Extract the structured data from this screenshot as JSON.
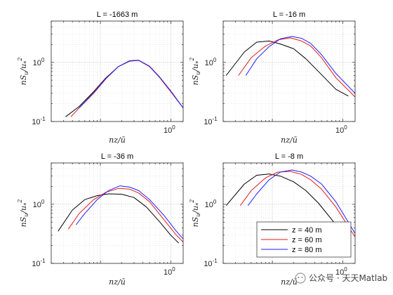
{
  "chart_data": [
    {
      "type": "line",
      "title": "L = -1663 m",
      "xlabel": "nz/ū",
      "ylabel": "nS_u/u_*^2",
      "xscale": "log",
      "yscale": "log",
      "xlim": [
        0.02,
        1.5
      ],
      "ylim": [
        0.1,
        5
      ],
      "xticks": [
        {
          "v": 1,
          "label": "10^0"
        }
      ],
      "yticks": [
        {
          "v": 0.1,
          "label": "10^-1"
        },
        {
          "v": 1,
          "label": "10^0"
        }
      ],
      "grid": true,
      "series": [
        {
          "name": "z = 40 m",
          "color": "#000000",
          "x": [
            0.032,
            0.05,
            0.08,
            0.12,
            0.18,
            0.26,
            0.35,
            0.5,
            0.7,
            1.0,
            1.5
          ],
          "y": [
            0.12,
            0.18,
            0.32,
            0.55,
            0.85,
            1.05,
            1.08,
            0.85,
            0.55,
            0.32,
            0.17
          ]
        },
        {
          "name": "z = 60 m",
          "color": "#e41a1c",
          "x": [
            0.038,
            0.05,
            0.08,
            0.12,
            0.18,
            0.26,
            0.35,
            0.5,
            0.7,
            1.0,
            1.5
          ],
          "y": [
            0.12,
            0.17,
            0.31,
            0.54,
            0.85,
            1.06,
            1.08,
            0.85,
            0.55,
            0.32,
            0.17
          ]
        },
        {
          "name": "z = 80 m",
          "color": "#1f1fff",
          "x": [
            0.05,
            0.08,
            0.12,
            0.18,
            0.26,
            0.35,
            0.5,
            0.7,
            1.0,
            1.5
          ],
          "y": [
            0.17,
            0.3,
            0.53,
            0.85,
            1.07,
            1.09,
            0.86,
            0.56,
            0.33,
            0.17
          ]
        }
      ]
    },
    {
      "type": "line",
      "title": "L = -16 m",
      "xlabel": "nz/ū",
      "ylabel": "nS_u/u_*^2",
      "xscale": "log",
      "yscale": "log",
      "xlim": [
        0.02,
        1.5
      ],
      "ylim": [
        0.1,
        5
      ],
      "xticks": [
        {
          "v": 1,
          "label": "10^0"
        }
      ],
      "yticks": [
        {
          "v": 0.1,
          "label": "10^-1"
        },
        {
          "v": 1,
          "label": "10^0"
        }
      ],
      "grid": true,
      "series": [
        {
          "name": "z = 40 m",
          "color": "#000000",
          "x": [
            0.022,
            0.04,
            0.06,
            0.09,
            0.13,
            0.2,
            0.3,
            0.5,
            0.8,
            1.2
          ],
          "y": [
            0.6,
            1.5,
            2.2,
            2.3,
            2.05,
            1.7,
            1.15,
            0.62,
            0.35,
            0.27
          ]
        },
        {
          "name": "z = 60 m",
          "color": "#e41a1c",
          "x": [
            0.033,
            0.05,
            0.08,
            0.12,
            0.18,
            0.26,
            0.35,
            0.5,
            0.8,
            1.5
          ],
          "y": [
            0.6,
            1.2,
            1.9,
            2.4,
            2.6,
            2.3,
            1.9,
            1.2,
            0.55,
            0.26
          ]
        },
        {
          "name": "z = 80 m",
          "color": "#1f1fff",
          "x": [
            0.042,
            0.06,
            0.09,
            0.13,
            0.19,
            0.26,
            0.35,
            0.5,
            0.8,
            1.5
          ],
          "y": [
            0.6,
            1.15,
            1.85,
            2.5,
            2.75,
            2.55,
            2.1,
            1.35,
            0.65,
            0.3
          ]
        }
      ]
    },
    {
      "type": "line",
      "title": "L = -36 m",
      "xlabel": "nz/ū",
      "ylabel": "nS_u/u_*^2",
      "xscale": "log",
      "yscale": "log",
      "xlim": [
        0.02,
        1.5
      ],
      "ylim": [
        0.1,
        5
      ],
      "xticks": [
        {
          "v": 1,
          "label": "10^0"
        }
      ],
      "yticks": [
        {
          "v": 0.1,
          "label": "10^-1"
        },
        {
          "v": 1,
          "label": "10^0"
        }
      ],
      "grid": true,
      "series": [
        {
          "name": "z = 40 m",
          "color": "#000000",
          "x": [
            0.025,
            0.04,
            0.06,
            0.09,
            0.13,
            0.2,
            0.3,
            0.45,
            0.7,
            1.0,
            1.3
          ],
          "y": [
            0.35,
            0.8,
            1.2,
            1.4,
            1.5,
            1.48,
            1.3,
            0.9,
            0.5,
            0.3,
            0.22
          ]
        },
        {
          "name": "z = 60 m",
          "color": "#e41a1c",
          "x": [
            0.035,
            0.05,
            0.08,
            0.12,
            0.18,
            0.26,
            0.35,
            0.5,
            0.8,
            1.2,
            1.5
          ],
          "y": [
            0.38,
            0.7,
            1.2,
            1.6,
            1.85,
            1.8,
            1.55,
            1.1,
            0.55,
            0.3,
            0.23
          ]
        },
        {
          "name": "z = 80 m",
          "color": "#1f1fff",
          "x": [
            0.045,
            0.06,
            0.09,
            0.13,
            0.19,
            0.26,
            0.35,
            0.5,
            0.8,
            1.2,
            1.5
          ],
          "y": [
            0.45,
            0.7,
            1.2,
            1.7,
            2.05,
            1.95,
            1.7,
            1.2,
            0.65,
            0.35,
            0.26
          ]
        }
      ]
    },
    {
      "type": "line",
      "title": "L = -8 m",
      "xlabel": "nz/ū",
      "ylabel": "nS_u/u_*^2",
      "xscale": "log",
      "yscale": "log",
      "xlim": [
        0.02,
        1.5
      ],
      "ylim": [
        0.1,
        5
      ],
      "xticks": [
        {
          "v": 1,
          "label": "10^0"
        }
      ],
      "yticks": [
        {
          "v": 0.1,
          "label": "10^-1"
        },
        {
          "v": 1,
          "label": "10^0"
        }
      ],
      "grid": true,
      "legend": {
        "position": "bottom-right",
        "entries": [
          "z = 40 m",
          "z = 60 m",
          "z = 80 m"
        ]
      },
      "series": [
        {
          "name": "z = 40 m",
          "color": "#000000",
          "x": [
            0.022,
            0.04,
            0.06,
            0.09,
            0.13,
            0.2,
            0.3,
            0.45,
            0.7,
            1.0,
            1.25
          ],
          "y": [
            0.95,
            2.2,
            3.1,
            3.25,
            3.0,
            2.4,
            1.7,
            1.05,
            0.55,
            0.32,
            0.26
          ]
        },
        {
          "name": "z = 60 m",
          "color": "#e41a1c",
          "x": [
            0.035,
            0.05,
            0.08,
            0.12,
            0.18,
            0.26,
            0.35,
            0.5,
            0.8,
            1.2,
            1.5
          ],
          "y": [
            0.95,
            1.7,
            2.8,
            3.5,
            3.6,
            3.2,
            2.6,
            1.8,
            0.9,
            0.42,
            0.28
          ]
        },
        {
          "name": "z = 80 m",
          "color": "#1f1fff",
          "x": [
            0.045,
            0.06,
            0.09,
            0.13,
            0.19,
            0.26,
            0.35,
            0.5,
            0.8,
            1.2,
            1.5
          ],
          "y": [
            0.95,
            1.5,
            2.6,
            3.5,
            3.8,
            3.5,
            3.0,
            2.2,
            1.1,
            0.5,
            0.32
          ]
        }
      ]
    }
  ],
  "watermark": "公众号 · 天天Matlab"
}
